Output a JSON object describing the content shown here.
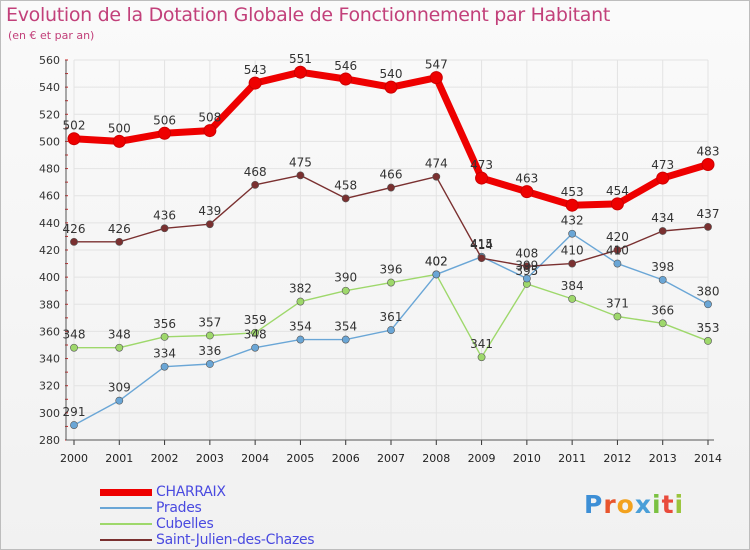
{
  "header": {
    "title": "Evolution de la Dotation Globale de Fonctionnement par Habitant",
    "subtitle": "(en € et par an)"
  },
  "brand": {
    "letters": [
      "P",
      "r",
      "o",
      "x",
      "i",
      "t",
      "i"
    ],
    "colors": [
      "#3d8fd6",
      "#e8552d",
      "#f3a21e",
      "#4a9fd8",
      "#7bc142",
      "#e94b3c",
      "#9ac43c"
    ]
  },
  "chart_data": {
    "type": "line",
    "x": [
      2000,
      2001,
      2002,
      2003,
      2004,
      2005,
      2006,
      2007,
      2008,
      2009,
      2010,
      2011,
      2012,
      2013,
      2014
    ],
    "ylim": [
      280,
      560
    ],
    "ytick_step": 20,
    "yticks": [
      280,
      300,
      320,
      340,
      360,
      380,
      400,
      420,
      440,
      460,
      480,
      500,
      520,
      540,
      560
    ],
    "grid": true,
    "legend_position": "bottom-left",
    "series": [
      {
        "name": "Cubelles",
        "color": "#9ed86b",
        "values": [
          348,
          348,
          356,
          357,
          359,
          382,
          390,
          396,
          402,
          341,
          395,
          384,
          371,
          366,
          353
        ]
      },
      {
        "name": "Prades",
        "color": "#6aa6d6",
        "values": [
          291,
          309,
          334,
          336,
          348,
          354,
          354,
          361,
          402,
          415,
          399,
          432,
          410,
          398,
          380
        ]
      },
      {
        "name": "Saint-Julien-des-Chazes",
        "color": "#7a3030",
        "values": [
          426,
          426,
          436,
          439,
          468,
          475,
          458,
          466,
          474,
          414,
          408,
          410,
          420,
          434,
          437
        ]
      },
      {
        "name": "CHARRAIX",
        "color": "#ee0000",
        "values": [
          502,
          500,
          506,
          508,
          543,
          551,
          546,
          540,
          547,
          473,
          463,
          453,
          454,
          473,
          483
        ]
      }
    ],
    "legend_order": [
      "CHARRAIX",
      "Prades",
      "Cubelles",
      "Saint-Julien-des-Chazes"
    ]
  }
}
